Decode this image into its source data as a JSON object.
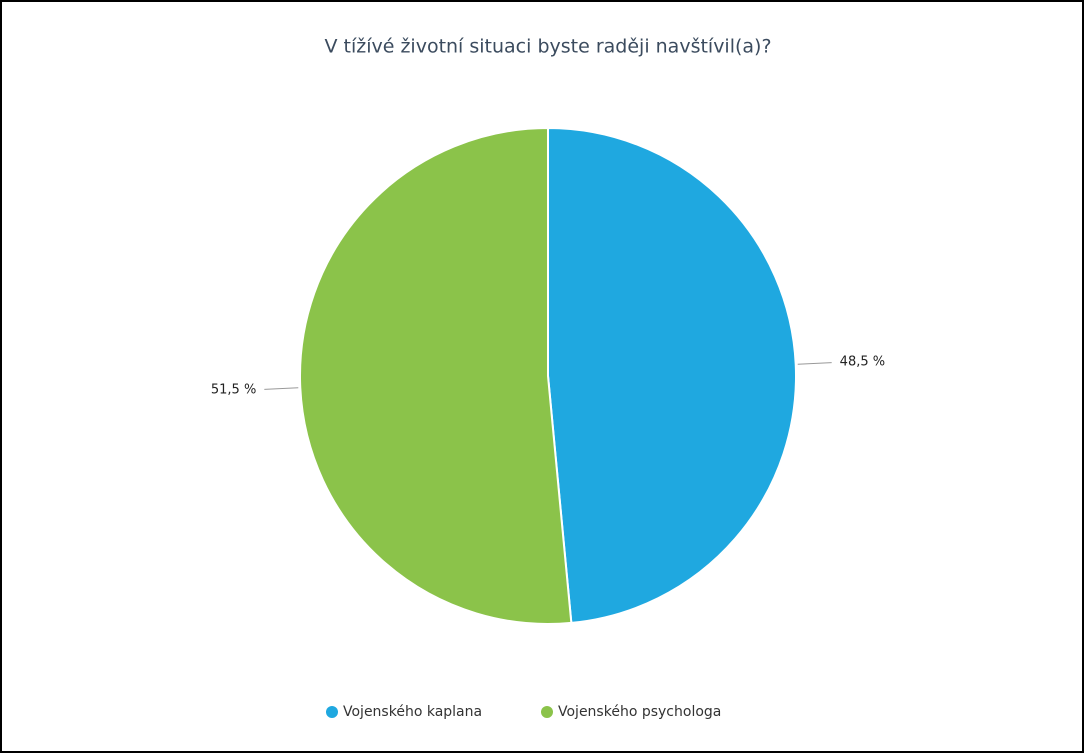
{
  "chart_data": {
    "type": "pie",
    "title": "V tížívé životní situaci byste raději navštívil(a)?",
    "categories": [
      "Vojenského kaplana",
      "Vojenského psychologa"
    ],
    "values": [
      48.5,
      51.5
    ],
    "value_labels": [
      "48,5 %",
      "51,5 %"
    ],
    "colors": [
      "#1fa8e0",
      "#8bc34a"
    ]
  }
}
